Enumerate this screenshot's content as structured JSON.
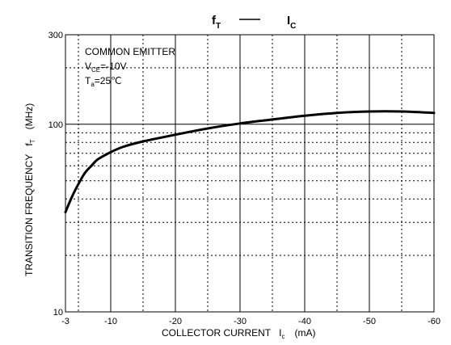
{
  "chart_data": {
    "type": "line",
    "title_left": "f",
    "title_left_sub": "T",
    "title_dash": "—",
    "title_right": "I",
    "title_right_sub": "C",
    "xlabel_main": "COLLECTOR CURRENT",
    "xlabel_sym": "I",
    "xlabel_sub": "c",
    "xlabel_unit": "(mA)",
    "ylabel_main": "TRANSITION FREQUENCY",
    "ylabel_sym": "f",
    "ylabel_sub": "T",
    "ylabel_unit": "(MHz)",
    "annotation": {
      "line1": "COMMON EMITTER",
      "line2_sym": "V",
      "line2_sub": "CE",
      "line2_val": "=-10V",
      "line3_sym": "T",
      "line3_sub": "a",
      "line3_val": "=25℃"
    },
    "x_scale": "linear",
    "y_scale": "log",
    "xlim": [
      -3,
      -60
    ],
    "ylim": [
      10,
      300
    ],
    "x_tick_labels": [
      "-3",
      "-10",
      "-20",
      "-30",
      "-40",
      "-50",
      "-60"
    ],
    "x_tick_values": [
      -3,
      -10,
      -20,
      -30,
      -40,
      -50,
      -60
    ],
    "y_tick_labels": [
      "300",
      "100",
      "10"
    ],
    "y_tick_values": [
      300,
      100,
      10
    ],
    "grid": true,
    "series": [
      {
        "x": [
          -3,
          -4,
          -5,
          -6,
          -7,
          -8,
          -10,
          -12,
          -15,
          -20,
          -25,
          -30,
          -35,
          -40,
          -45,
          -50,
          -55,
          -60
        ],
        "y": [
          34,
          41,
          48,
          55,
          60,
          65,
          71,
          76,
          81,
          88,
          95,
          101,
          106,
          111,
          115,
          117,
          117,
          115
        ]
      }
    ]
  }
}
